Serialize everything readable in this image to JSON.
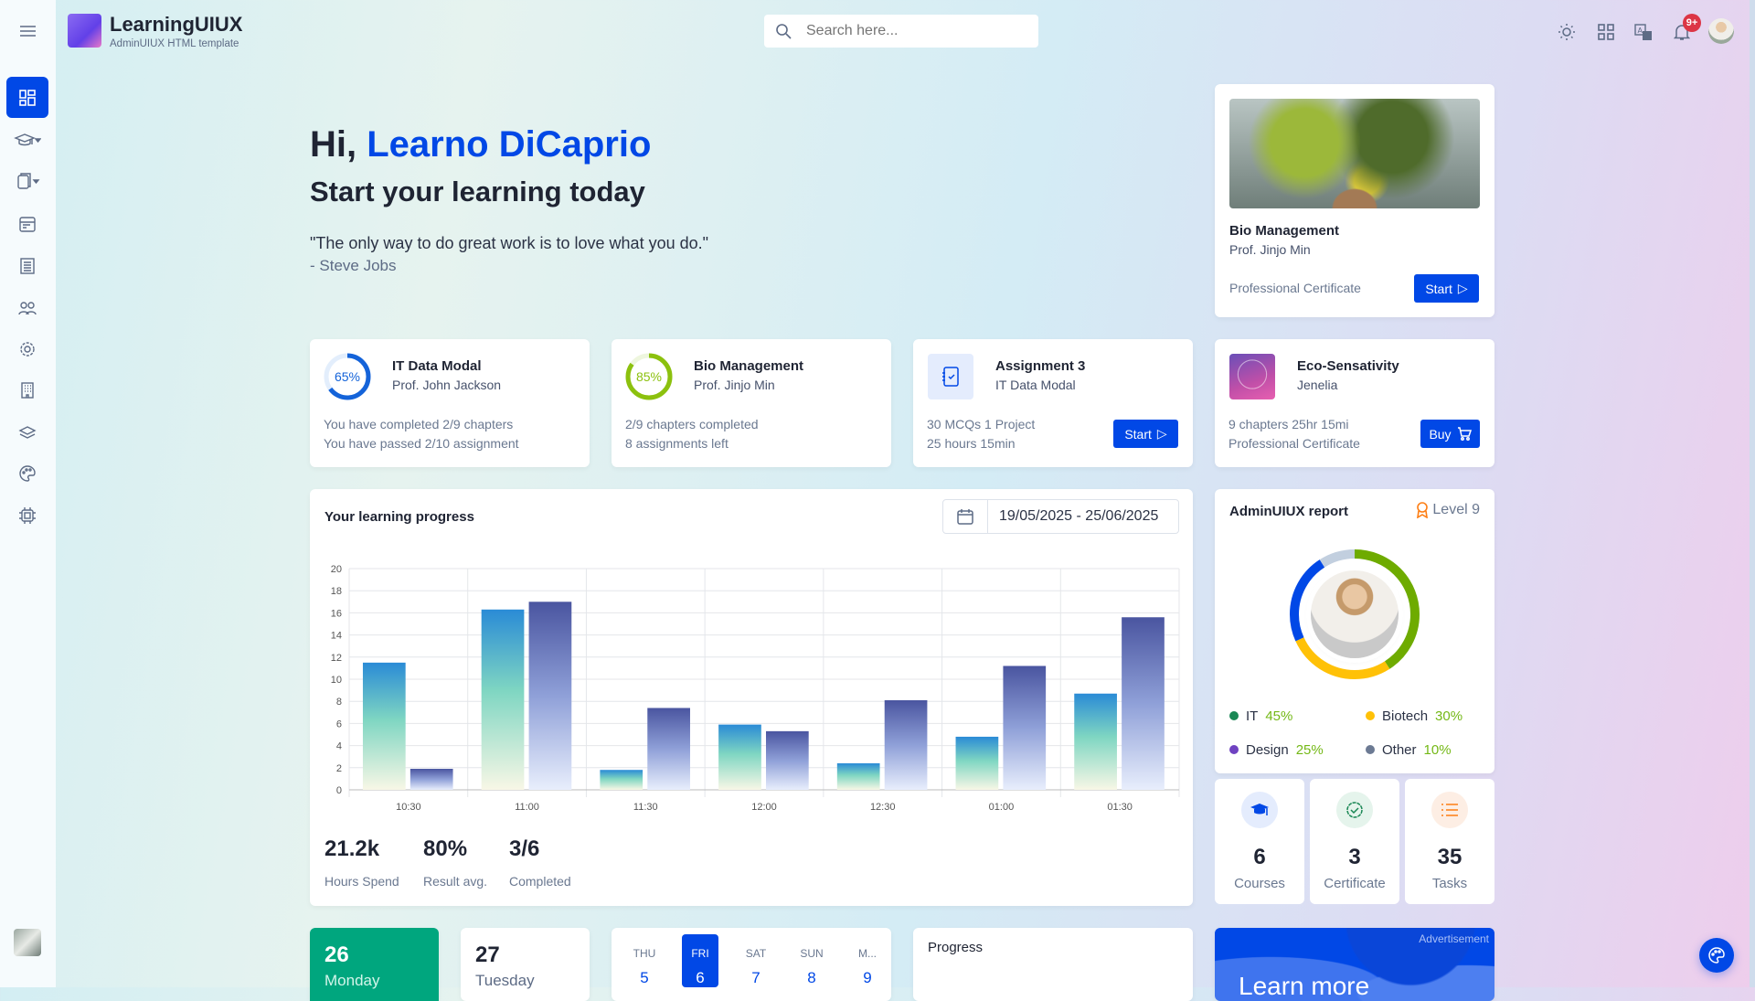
{
  "header": {
    "brand": "LearningUIUX",
    "subtitle": "AdminUIUX HTML template",
    "search_placeholder": "Search here...",
    "notification_badge": "9+",
    "icons": [
      "menu-icon",
      "sun-icon",
      "apps-grid-icon",
      "translate-icon",
      "bell-icon",
      "user-avatar"
    ]
  },
  "sidebar": {
    "items": [
      "dashboard",
      "learning",
      "courses",
      "calendar",
      "reports",
      "users",
      "settings",
      "institutes",
      "layers",
      "themes",
      "components"
    ]
  },
  "hero": {
    "greeting": "Hi,",
    "name": "Learno DiCaprio",
    "subtitle": "Start your learning today",
    "quote": "\"The only way to do great work is to love what you do.\"",
    "author": "- Steve Jobs"
  },
  "featured": {
    "title": "Bio Management",
    "teacher": "Prof. Jinjo Min",
    "type": "Professional Certificate",
    "button": "Start"
  },
  "cards": [
    {
      "title": "IT Data Modal",
      "sub": "Prof. John Jackson",
      "progress": 65,
      "progress_label": "65%",
      "line1": "You have completed 2/9 chapters",
      "line2": "You have passed 2/10 assignment",
      "color": "#1463d9"
    },
    {
      "title": "Bio Management",
      "sub": "Prof. Jinjo Min",
      "progress": 85,
      "progress_label": "85%",
      "line1": "2/9 chapters completed",
      "line2": "8 assignments left",
      "color": "#8cc10e"
    },
    {
      "title": "Assignment 3",
      "sub": "IT Data Modal",
      "line1": "30 MCQs 1 Project",
      "line2": "25 hours 15min",
      "button": "Start"
    },
    {
      "title": "Eco-Sensativity",
      "sub": "Jenelia",
      "line1": "9 chapters 25hr 15mi",
      "line2": "Professional Certificate",
      "button": "Buy"
    }
  ],
  "progress_card": {
    "title": "Your learning progress",
    "date_range": "19/05/2025 - 25/06/2025",
    "stats": [
      {
        "value": "21.2k",
        "label": "Hours Spend"
      },
      {
        "value": "80%",
        "label": "Result avg."
      },
      {
        "value": "3/6",
        "label": "Completed"
      }
    ]
  },
  "chart_data": {
    "type": "bar",
    "categories": [
      "10:30",
      "11:00",
      "11:30",
      "12:00",
      "12:30",
      "01:00",
      "01:30"
    ],
    "series": [
      {
        "values": [
          11.5,
          16.3,
          1.8,
          5.9,
          2.4,
          4.8,
          8.7
        ],
        "color": "#2a8bd6"
      },
      {
        "values": [
          1.9,
          17.0,
          7.4,
          5.3,
          8.1,
          11.2,
          15.6
        ],
        "color": "#4a55a0"
      }
    ],
    "yticks": [
      0,
      2,
      4,
      6,
      8,
      10,
      12,
      14,
      16,
      18,
      20
    ],
    "ylim": [
      0,
      20
    ],
    "grid": true
  },
  "report": {
    "title": "AdminUIUX report",
    "level": "Level 9",
    "legend": [
      {
        "label": "IT",
        "pct": "45%",
        "color": "#198754"
      },
      {
        "label": "Biotech",
        "pct": "30%",
        "color": "#ffc107"
      },
      {
        "label": "Design",
        "pct": "25%",
        "color": "#6f42c1"
      },
      {
        "label": "Other",
        "pct": "10%",
        "color": "#6c7a93"
      }
    ],
    "donut": [
      {
        "value": 45,
        "color": "#6eab00"
      },
      {
        "value": 30,
        "color": "#ffc107"
      },
      {
        "value": 25,
        "color": "#0148e6"
      },
      {
        "value": 10,
        "color": "#c2cfdf"
      }
    ]
  },
  "summary": [
    {
      "value": "6",
      "label": "Courses"
    },
    {
      "value": "3",
      "label": "Certificate"
    },
    {
      "value": "35",
      "label": "Tasks"
    }
  ],
  "bottom": {
    "day1": {
      "num": "26",
      "name": "Monday"
    },
    "day2": {
      "num": "27",
      "name": "Tuesday"
    },
    "week": [
      {
        "d": "THU",
        "n": "5"
      },
      {
        "d": "FRI",
        "n": "6"
      },
      {
        "d": "SAT",
        "n": "7"
      },
      {
        "d": "SUN",
        "n": "8"
      },
      {
        "d": "M...",
        "n": "9"
      }
    ],
    "progress_title": "Progress",
    "ad_label": "Advertisement",
    "ad_text": "Learn more"
  },
  "colors": {
    "primary": "#0148e6",
    "green": "#00a67e"
  }
}
